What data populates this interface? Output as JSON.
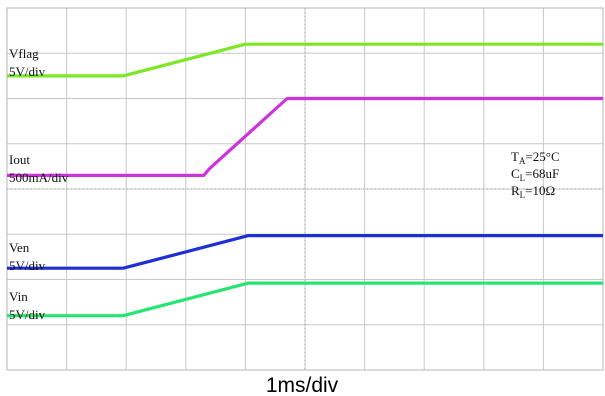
{
  "chart_data": {
    "type": "line",
    "x_unit": "div",
    "y_unit": "div",
    "xlim": [
      0,
      10
    ],
    "ylim": [
      0,
      8
    ],
    "grid": true,
    "timebase": "1ms/div",
    "series": [
      {
        "name": "Vflag",
        "scale": "5V/div",
        "color": "#7ce628",
        "points": [
          [
            0,
            6.5
          ],
          [
            1.95,
            6.5
          ],
          [
            4.0,
            7.2
          ],
          [
            10,
            7.2
          ]
        ]
      },
      {
        "name": "Iout",
        "scale": "500mA/div",
        "color": "#cc33dd",
        "points": [
          [
            0,
            4.3
          ],
          [
            3.3,
            4.3
          ],
          [
            3.4,
            4.45
          ],
          [
            4.7,
            6.0
          ],
          [
            10,
            6.0
          ]
        ]
      },
      {
        "name": "Ven",
        "scale": "5V/div",
        "color": "#1f2fd6",
        "points": [
          [
            0,
            2.25
          ],
          [
            1.95,
            2.25
          ],
          [
            4.05,
            2.97
          ],
          [
            10,
            2.97
          ]
        ]
      },
      {
        "name": "Vin",
        "scale": "5V/div",
        "color": "#27e573",
        "points": [
          [
            0,
            1.2
          ],
          [
            1.95,
            1.2
          ],
          [
            4.05,
            1.92
          ],
          [
            10,
            1.92
          ]
        ]
      }
    ],
    "conditions": [
      {
        "sym": "T",
        "sub": "A",
        "val": "=25°C"
      },
      {
        "sym": "C",
        "sub": "L",
        "val": "=68uF"
      },
      {
        "sym": "R",
        "sub": "L",
        "val": "=10Ω"
      }
    ]
  }
}
